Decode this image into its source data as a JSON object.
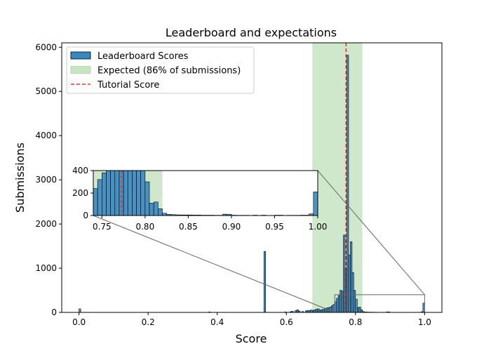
{
  "chart_data": {
    "type": "bar",
    "title": "Leaderboard and expectations",
    "xlabel": "Score",
    "ylabel": "Submissions",
    "xlim": [
      -0.05,
      1.05
    ],
    "ylim": [
      0,
      6100
    ],
    "xticks": [
      "0.0",
      "0.2",
      "0.4",
      "0.6",
      "0.8",
      "1.0"
    ],
    "yticks": [
      "0",
      "1000",
      "2000",
      "3000",
      "4000",
      "5000",
      "6000"
    ],
    "grid": false,
    "legend_placement": "upper-left",
    "legend": [
      {
        "label": "Leaderboard Scores",
        "kind": "patch",
        "color": "#3a87bf",
        "edge": "#000000"
      },
      {
        "label": "Expected (86% of submissions)",
        "kind": "band",
        "color": "#c7e4c3"
      },
      {
        "label": "Tutorial Score",
        "kind": "dashed-line",
        "color": "#e8312a"
      }
    ],
    "colors": {
      "bars": "#3a87bf",
      "expected_band": "#c7e4c3",
      "tutorial_line": "#e8312a",
      "zoom_lines": "#666666"
    },
    "expected_band": [
      0.675,
      0.82
    ],
    "tutorial_score": 0.7727,
    "bin_width": 0.005,
    "bins": [
      [
        0.0,
        80
      ],
      [
        0.375,
        10
      ],
      [
        0.535,
        1380
      ],
      [
        0.595,
        10
      ],
      [
        0.61,
        15
      ],
      [
        0.615,
        25
      ],
      [
        0.625,
        40
      ],
      [
        0.63,
        60
      ],
      [
        0.635,
        30
      ],
      [
        0.645,
        20
      ],
      [
        0.655,
        35
      ],
      [
        0.66,
        45
      ],
      [
        0.665,
        40
      ],
      [
        0.67,
        55
      ],
      [
        0.675,
        40
      ],
      [
        0.68,
        60
      ],
      [
        0.685,
        70
      ],
      [
        0.69,
        80
      ],
      [
        0.695,
        50
      ],
      [
        0.7,
        60
      ],
      [
        0.705,
        70
      ],
      [
        0.71,
        90
      ],
      [
        0.715,
        100
      ],
      [
        0.72,
        110
      ],
      [
        0.725,
        120
      ],
      [
        0.73,
        150
      ],
      [
        0.735,
        180
      ],
      [
        0.74,
        240
      ],
      [
        0.745,
        320
      ],
      [
        0.75,
        380
      ],
      [
        0.755,
        500
      ],
      [
        0.76,
        480
      ],
      [
        0.765,
        1750
      ],
      [
        0.77,
        1000
      ],
      [
        0.775,
        5820
      ],
      [
        0.78,
        1300
      ],
      [
        0.785,
        1600
      ],
      [
        0.79,
        900
      ],
      [
        0.795,
        500
      ],
      [
        0.8,
        300
      ],
      [
        0.805,
        110
      ],
      [
        0.81,
        120
      ],
      [
        0.815,
        60
      ],
      [
        0.82,
        20
      ],
      [
        0.825,
        10
      ],
      [
        0.83,
        8
      ],
      [
        0.835,
        6
      ],
      [
        0.84,
        5
      ],
      [
        0.845,
        5
      ],
      [
        0.85,
        5
      ],
      [
        0.855,
        4
      ],
      [
        0.86,
        4
      ],
      [
        0.865,
        3
      ],
      [
        0.87,
        3
      ],
      [
        0.875,
        3
      ],
      [
        0.88,
        2
      ],
      [
        0.885,
        2
      ],
      [
        0.89,
        12
      ],
      [
        0.895,
        10
      ],
      [
        0.9,
        3
      ],
      [
        0.905,
        2
      ],
      [
        0.91,
        2
      ],
      [
        0.915,
        2
      ],
      [
        0.925,
        3
      ],
      [
        0.935,
        3
      ],
      [
        0.95,
        3
      ],
      [
        0.955,
        3
      ],
      [
        0.965,
        2
      ],
      [
        0.97,
        2
      ],
      [
        0.975,
        2
      ],
      [
        0.98,
        3
      ],
      [
        0.985,
        3
      ],
      [
        0.99,
        15
      ],
      [
        0.995,
        210
      ]
    ],
    "inset": {
      "xlim": [
        0.74,
        1.0
      ],
      "ylim": [
        0,
        400
      ],
      "xticks": [
        "0.75",
        "0.80",
        "0.85",
        "0.90",
        "0.95",
        "1.00"
      ],
      "yticks": [
        "0",
        "200",
        "400"
      ]
    }
  }
}
